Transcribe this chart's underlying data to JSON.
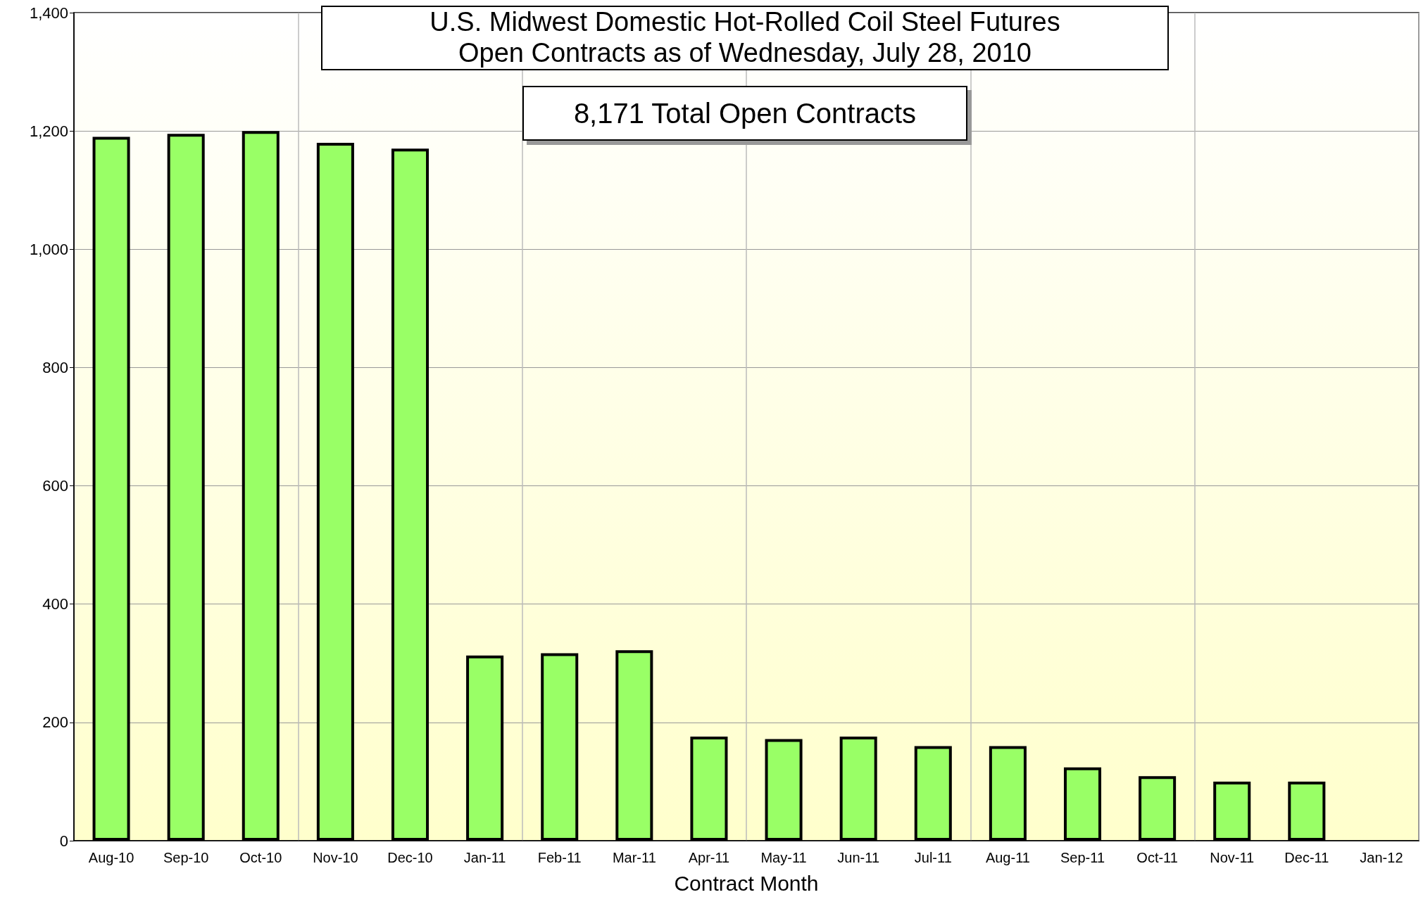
{
  "chart_data": {
    "type": "bar",
    "title": "U.S. Midwest Domestic Hot-Rolled Coil Steel Futures\nOpen Contracts as of Wednesday, July 28, 2010",
    "xlabel": "Contract Month",
    "annotations": [
      "8,171 Total Open Contracts"
    ],
    "categories": [
      "Aug-10",
      "Sep-10",
      "Oct-10",
      "Nov-10",
      "Dec-10",
      "Jan-11",
      "Feb-11",
      "Mar-11",
      "Apr-11",
      "May-11",
      "Jun-11",
      "Jul-11",
      "Aug-11",
      "Sep-11",
      "Oct-11",
      "Nov-11",
      "Dec-11",
      "Jan-12"
    ],
    "values": [
      1190,
      1195,
      1200,
      1180,
      1170,
      313,
      317,
      322,
      176,
      172,
      176,
      160,
      160,
      124,
      109,
      100,
      100,
      0
    ],
    "color": "#99ff66",
    "ylim": [
      0,
      1400
    ],
    "yticks": [
      0,
      200,
      400,
      600,
      800,
      {
        "value": 1000,
        "label": "1,000"
      },
      {
        "value": 1200,
        "label": "1,200"
      },
      {
        "value": 1400,
        "label": "1,400"
      }
    ],
    "grid": true
  }
}
